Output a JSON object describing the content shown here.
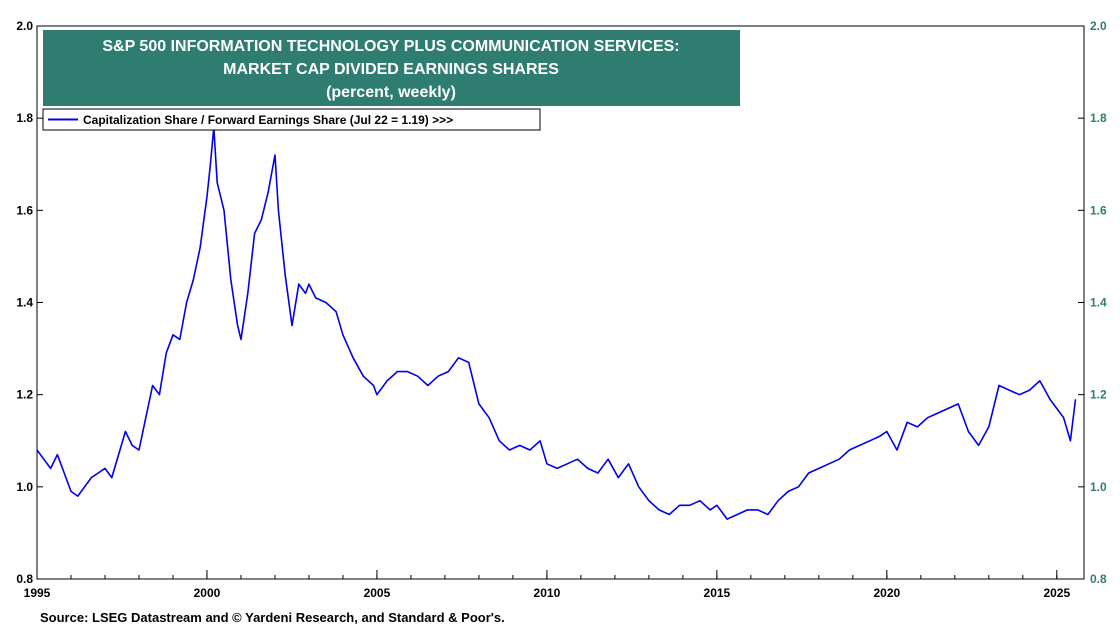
{
  "title": {
    "line1": "S&P 500 INFORMATION TECHNOLOGY PLUS COMMUNICATION SERVICES:",
    "line2": "MARKET CAP DIVIDED EARNINGS SHARES",
    "line3": "(percent, weekly)"
  },
  "legend": {
    "label": "Capitalization Share / Forward Earnings Share (Jul 22 = 1.19) >>>"
  },
  "source": "Source: LSEG Datastream and © Yardeni Research, and Standard & Poor's.",
  "colors": {
    "line": "#0000ee",
    "title_bg": "#2e7d70",
    "right_axis": "#2e7d70",
    "left_axis": "#000000"
  },
  "chart_data": {
    "type": "line",
    "title": "S&P 500 INFORMATION TECHNOLOGY PLUS COMMUNICATION SERVICES: MARKET CAP DIVIDED EARNINGS SHARES (percent, weekly)",
    "xlabel": "",
    "ylabel": "",
    "xlim": [
      1995,
      2025.8
    ],
    "ylim": [
      0.8,
      2.0
    ],
    "x_ticks": [
      "1995",
      "2000",
      "2005",
      "2010",
      "2015",
      "2020",
      "2025"
    ],
    "y_ticks_left": [
      "0.8",
      "1.0",
      "1.2",
      "1.4",
      "1.6",
      "1.8",
      "2.0"
    ],
    "y_ticks_right": [
      "0.8",
      "1.0",
      "1.2",
      "1.4",
      "1.6",
      "1.8",
      "2.0"
    ],
    "grid": false,
    "legend_position": "top-left",
    "series": [
      {
        "name": "Capitalization Share / Forward Earnings Share (Jul 22 = 1.19) >>>",
        "x": [
          1995.0,
          1995.2,
          1995.4,
          1995.6,
          1995.8,
          1996.0,
          1996.2,
          1996.4,
          1996.6,
          1996.8,
          1997.0,
          1997.2,
          1997.4,
          1997.6,
          1997.8,
          1998.0,
          1998.2,
          1998.4,
          1998.6,
          1998.8,
          1999.0,
          1999.2,
          1999.4,
          1999.6,
          1999.8,
          2000.0,
          2000.1,
          2000.2,
          2000.3,
          2000.5,
          2000.7,
          2000.9,
          2001.0,
          2001.2,
          2001.4,
          2001.6,
          2001.8,
          2002.0,
          2002.1,
          2002.3,
          2002.5,
          2002.7,
          2002.9,
          2003.0,
          2003.2,
          2003.5,
          2003.8,
          2004.0,
          2004.3,
          2004.6,
          2004.9,
          2005.0,
          2005.3,
          2005.6,
          2005.9,
          2006.2,
          2006.5,
          2006.8,
          2007.1,
          2007.4,
          2007.7,
          2008.0,
          2008.3,
          2008.6,
          2008.9,
          2009.2,
          2009.5,
          2009.8,
          2010.0,
          2010.3,
          2010.6,
          2010.9,
          2011.2,
          2011.5,
          2011.8,
          2012.1,
          2012.4,
          2012.7,
          2013.0,
          2013.3,
          2013.6,
          2013.9,
          2014.2,
          2014.5,
          2014.8,
          2015.0,
          2015.3,
          2015.6,
          2015.9,
          2016.2,
          2016.5,
          2016.8,
          2017.1,
          2017.4,
          2017.7,
          2018.0,
          2018.3,
          2018.6,
          2018.9,
          2019.2,
          2019.5,
          2019.8,
          2020.0,
          2020.3,
          2020.6,
          2020.9,
          2021.2,
          2021.5,
          2021.8,
          2022.1,
          2022.4,
          2022.7,
          2023.0,
          2023.3,
          2023.6,
          2023.9,
          2024.2,
          2024.5,
          2024.8,
          2025.0,
          2025.2,
          2025.4,
          2025.55
        ],
        "y": [
          1.08,
          1.06,
          1.04,
          1.07,
          1.03,
          0.99,
          0.98,
          1.0,
          1.02,
          1.03,
          1.04,
          1.02,
          1.07,
          1.12,
          1.09,
          1.08,
          1.15,
          1.22,
          1.2,
          1.29,
          1.33,
          1.32,
          1.4,
          1.45,
          1.52,
          1.63,
          1.7,
          1.78,
          1.66,
          1.6,
          1.45,
          1.35,
          1.32,
          1.42,
          1.55,
          1.58,
          1.64,
          1.72,
          1.6,
          1.46,
          1.35,
          1.44,
          1.42,
          1.44,
          1.41,
          1.4,
          1.38,
          1.33,
          1.28,
          1.24,
          1.22,
          1.2,
          1.23,
          1.25,
          1.25,
          1.24,
          1.22,
          1.24,
          1.25,
          1.28,
          1.27,
          1.18,
          1.15,
          1.1,
          1.08,
          1.09,
          1.08,
          1.1,
          1.05,
          1.04,
          1.05,
          1.06,
          1.04,
          1.03,
          1.06,
          1.02,
          1.05,
          1.0,
          0.97,
          0.95,
          0.94,
          0.96,
          0.96,
          0.97,
          0.95,
          0.96,
          0.93,
          0.94,
          0.95,
          0.95,
          0.94,
          0.97,
          0.99,
          1.0,
          1.03,
          1.04,
          1.05,
          1.06,
          1.08,
          1.09,
          1.1,
          1.11,
          1.12,
          1.08,
          1.14,
          1.13,
          1.15,
          1.16,
          1.17,
          1.18,
          1.12,
          1.09,
          1.13,
          1.22,
          1.21,
          1.2,
          1.21,
          1.23,
          1.19,
          1.17,
          1.15,
          1.1,
          1.19
        ]
      }
    ]
  }
}
